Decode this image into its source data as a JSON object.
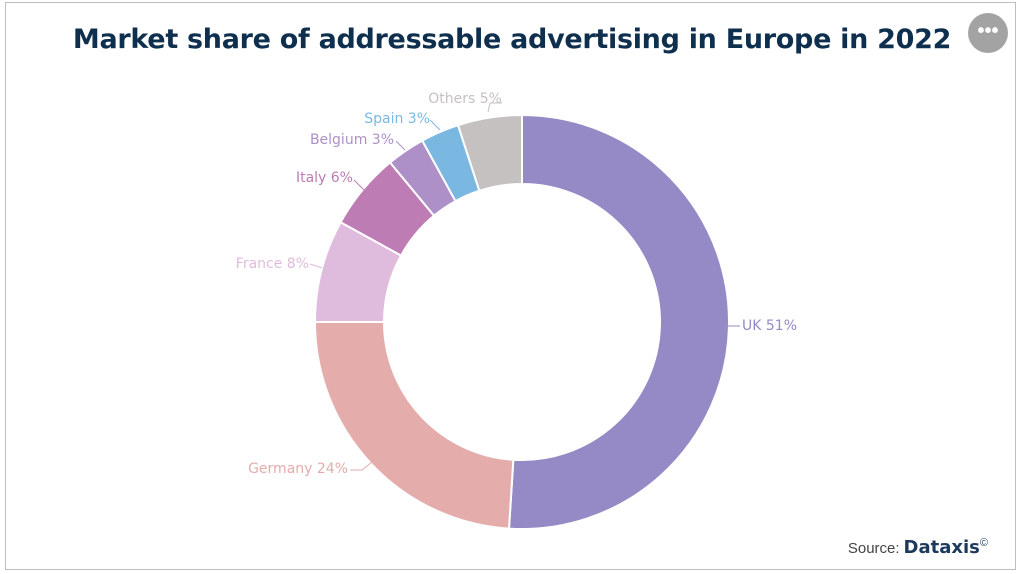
{
  "chart_data": {
    "type": "pie",
    "title": "Market share of addressable advertising in Europe in 2022",
    "donut": true,
    "unit": "%",
    "slices": [
      {
        "label": "UK",
        "value": 51,
        "text": "UK 51%",
        "color": "#9589c6"
      },
      {
        "label": "Germany",
        "value": 24,
        "text": "Germany 24%",
        "color": "#e4adab"
      },
      {
        "label": "France",
        "value": 8,
        "text": "France 8%",
        "color": "#dfbcdd"
      },
      {
        "label": "Italy",
        "value": 6,
        "text": "Italy 6%",
        "color": "#bd7db4"
      },
      {
        "label": "Belgium",
        "value": 3,
        "text": "Belgium 3%",
        "color": "#ad90c8"
      },
      {
        "label": "Spain",
        "value": 3,
        "text": "Spain 3%",
        "color": "#7ab8e2"
      },
      {
        "label": "Others",
        "value": 5,
        "text": "Others 5%",
        "color": "#c5c1c0"
      }
    ]
  },
  "source": {
    "label": "Source:",
    "brand": "Dataxis",
    "mark": "©"
  },
  "menu": {
    "label": "•••"
  }
}
